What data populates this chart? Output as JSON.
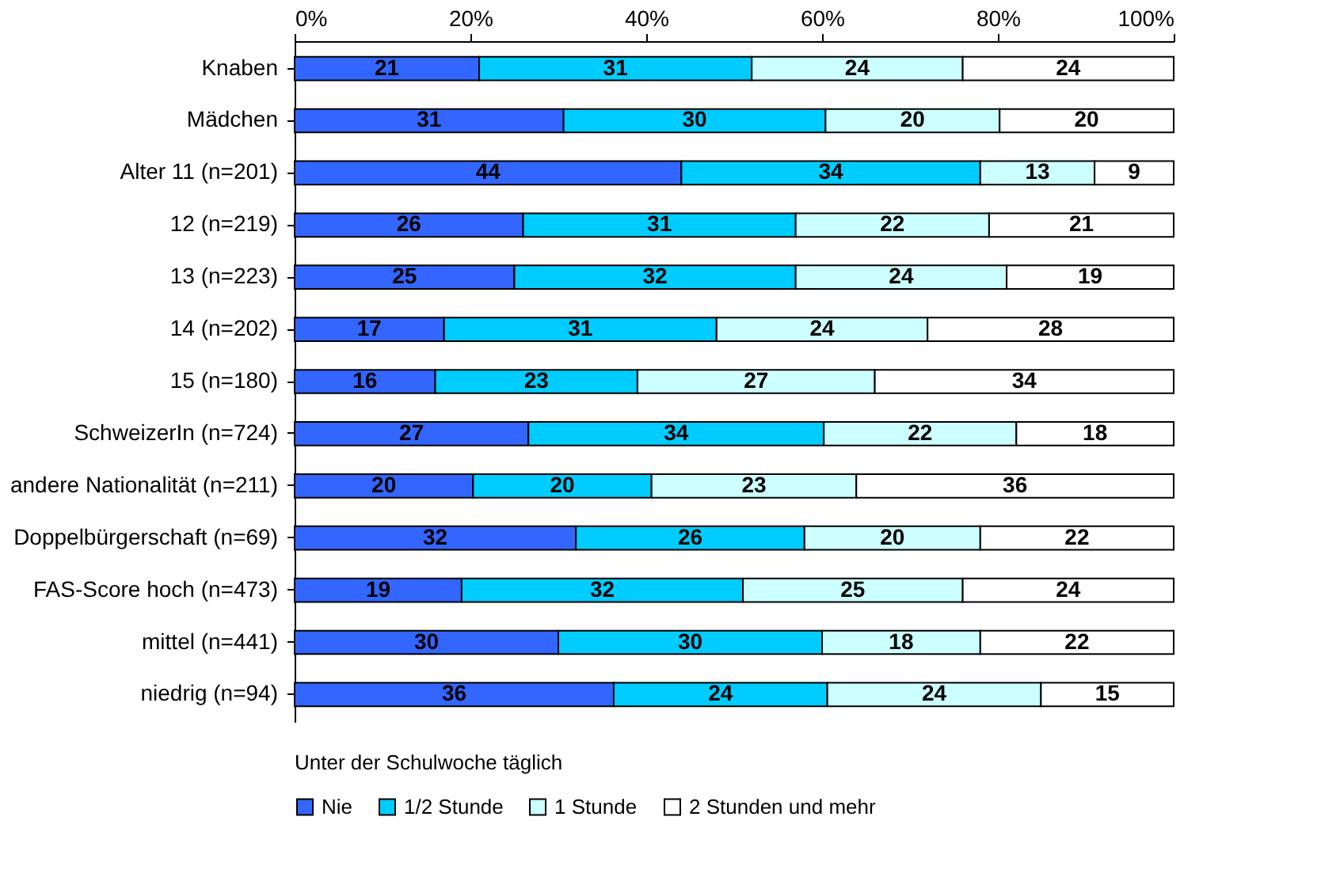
{
  "chart_data": {
    "type": "bar",
    "orientation": "horizontal",
    "stacked": true,
    "categories": [
      "Knaben",
      "Mädchen",
      "Alter 11 (n=201)",
      "12 (n=219)",
      "13 (n=223)",
      "14 (n=202)",
      "15 (n=180)",
      "SchweizerIn (n=724)",
      "andere Nationalität (n=211)",
      "Doppelbürgerschaft (n=69)",
      "FAS-Score hoch (n=473)",
      "mittel (n=441)",
      "niedrig (n=94)"
    ],
    "series": [
      {
        "name": "Nie",
        "color": "#3366ff",
        "values": [
          21,
          30.6,
          44,
          26,
          25,
          17,
          16,
          26.6,
          20.3,
          32,
          19,
          30,
          36.3
        ],
        "value_labels": [
          "21",
          "31",
          "44",
          "26",
          "25",
          "17",
          "16",
          "27",
          "20",
          "32",
          "19",
          "30",
          "36"
        ]
      },
      {
        "name": "1/2 Stunde",
        "color": "#00ccff",
        "values": [
          31,
          29.8,
          34,
          31,
          32,
          31,
          23,
          33.6,
          20.3,
          26,
          32,
          30,
          24.3
        ],
        "value_labels": [
          "31",
          "30",
          "34",
          "31",
          "32",
          "31",
          "23",
          "34",
          "20",
          "26",
          "32",
          "30",
          "24"
        ]
      },
      {
        "name": "1 Stunde",
        "color": "#ccffff",
        "values": [
          24,
          19.8,
          13,
          22,
          24,
          24,
          27,
          21.9,
          23.3,
          20,
          25,
          18,
          24.3
        ],
        "value_labels": [
          "24",
          "20",
          "13",
          "22",
          "24",
          "24",
          "27",
          "22",
          "23",
          "20",
          "25",
          "18",
          "24"
        ]
      },
      {
        "name": "2 Stunden und mehr",
        "color": "#ffffff",
        "values": [
          24,
          19.8,
          9,
          21,
          19,
          28,
          34,
          17.9,
          36.1,
          22,
          24,
          22,
          15.1
        ],
        "value_labels": [
          "24",
          "20",
          "9",
          "21",
          "19",
          "28",
          "34",
          "18",
          "36",
          "22",
          "24",
          "22",
          "15"
        ]
      }
    ],
    "xlim": [
      0,
      100
    ],
    "xticks": [
      {
        "value": 0,
        "label": "0%"
      },
      {
        "value": 20,
        "label": "20%"
      },
      {
        "value": 40,
        "label": "40%"
      },
      {
        "value": 60,
        "label": "60%"
      },
      {
        "value": 80,
        "label": "80%"
      },
      {
        "value": 100,
        "label": "100%"
      }
    ],
    "legend_title": "Unter der Schulwoche täglich",
    "legend": "bottom",
    "grid": false
  }
}
